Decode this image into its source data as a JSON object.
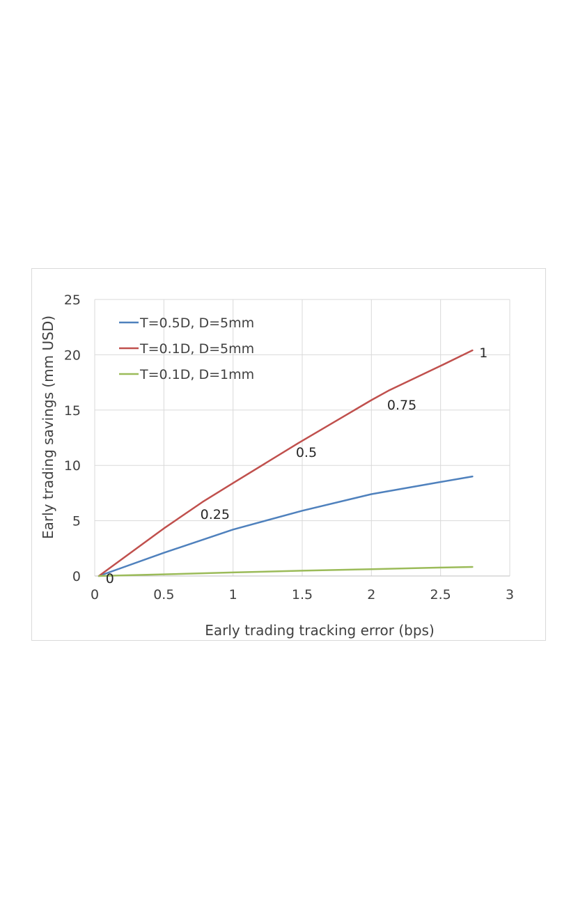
{
  "chart_data": {
    "type": "line",
    "title": "",
    "xlabel": "Early trading tracking error (bps)",
    "ylabel": "Early trading savings  (mm USD)",
    "xlim": [
      0,
      3
    ],
    "ylim": [
      0,
      25
    ],
    "x_ticks": [
      "0",
      "0.5",
      "1",
      "1.5",
      "2",
      "2.5",
      "3"
    ],
    "y_ticks": [
      "0",
      "5",
      "10",
      "15",
      "20",
      "25"
    ],
    "grid": true,
    "legend_position": "top-left",
    "series": [
      {
        "name": "T=0.5D, D=5mm",
        "color": "#4f81bd",
        "x": [
          0.03,
          0.5,
          1.0,
          1.5,
          2.0,
          2.5,
          2.73
        ],
        "y": [
          0,
          2.1,
          4.2,
          5.9,
          7.4,
          8.5,
          9.0
        ]
      },
      {
        "name": "T=0.1D, D=5mm",
        "color": "#c0504d",
        "x": [
          0.03,
          0.5,
          0.78,
          1.0,
          1.47,
          2.0,
          2.13,
          2.5,
          2.73
        ],
        "y": [
          0,
          4.3,
          6.7,
          8.4,
          12.0,
          15.9,
          16.8,
          19.0,
          20.4
        ]
      },
      {
        "name": "T=0.1D, D=1mm",
        "color": "#9bbb59",
        "x": [
          0.03,
          0.5,
          1.0,
          1.5,
          2.0,
          2.5,
          2.73
        ],
        "y": [
          0,
          0.15,
          0.32,
          0.48,
          0.62,
          0.76,
          0.82
        ]
      }
    ],
    "annotations": [
      {
        "text": "0",
        "x": 0.11,
        "y": -0.2
      },
      {
        "text": "0.25",
        "x": 0.87,
        "y": 5.6
      },
      {
        "text": "0.5",
        "x": 1.53,
        "y": 11.2
      },
      {
        "text": "0.75",
        "x": 2.22,
        "y": 15.5
      },
      {
        "text": "1",
        "x": 2.81,
        "y": 20.2
      }
    ]
  }
}
